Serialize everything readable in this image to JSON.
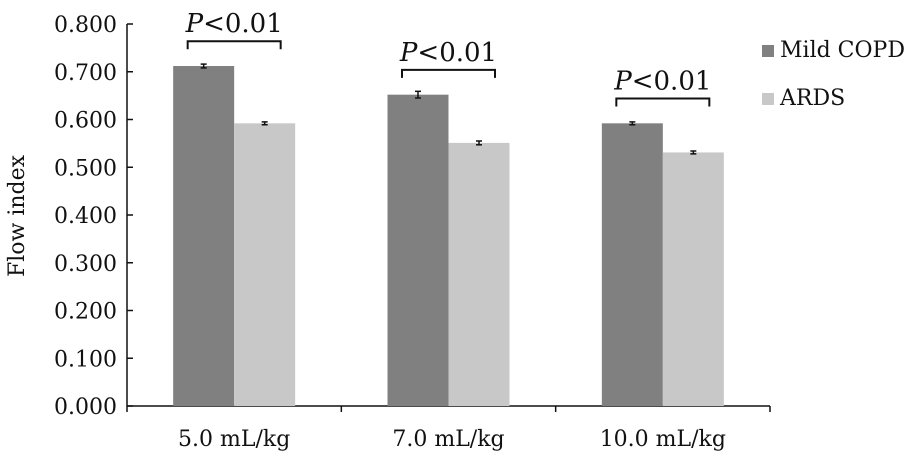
{
  "chart_data": {
    "type": "bar",
    "title": "",
    "xlabel": "",
    "ylabel": "Flow index",
    "ylim": [
      0,
      0.8
    ],
    "y_ticks": [
      "0.000",
      "0.100",
      "0.200",
      "0.300",
      "0.400",
      "0.500",
      "0.600",
      "0.700",
      "0.800"
    ],
    "categories": [
      "5.0 mL/kg",
      "7.0 mL/kg",
      "10.0 mL/kg"
    ],
    "series": [
      {
        "name": "Mild COPD",
        "values": [
          0.712,
          0.652,
          0.592
        ],
        "errors": [
          0.004,
          0.007,
          0.003
        ],
        "color": "#808080"
      },
      {
        "name": "ARDS",
        "values": [
          0.592,
          0.551,
          0.531
        ],
        "errors": [
          0.003,
          0.004,
          0.003
        ],
        "color": "#c8c8c8"
      }
    ],
    "annotations": [
      {
        "category": "5.0 mL/kg",
        "text_italic": "P",
        "text_rest": "<0.01"
      },
      {
        "category": "7.0 mL/kg",
        "text_italic": "P",
        "text_rest": "<0.01"
      },
      {
        "category": "10.0 mL/kg",
        "text_italic": "P",
        "text_rest": "<0.01"
      }
    ],
    "legend_position": "top-right",
    "grid": false
  }
}
